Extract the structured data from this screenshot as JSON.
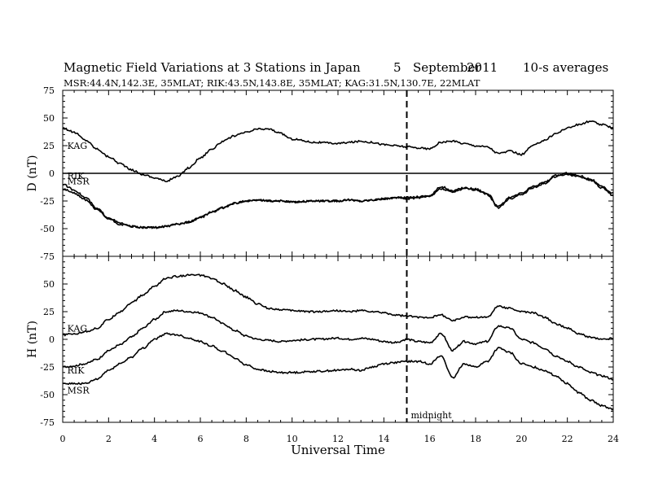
{
  "chart_data": {
    "type": "line",
    "title": {
      "main": "Magnetic Field Variations at 3 Stations in Japan",
      "day": "5",
      "month": "September",
      "year": "2011",
      "averaging": "10-s averages",
      "subtitle": "MSR:44.4N,142.3E, 35MLAT;  RIK:43.5N,143.8E, 35MLAT;  KAG:31.5N,130.7E, 22MLAT"
    },
    "xlabel": "Universal Time",
    "xlim": [
      0,
      24
    ],
    "xticks": [
      0,
      2,
      4,
      6,
      8,
      10,
      12,
      14,
      16,
      18,
      20,
      22,
      24
    ],
    "annotation": {
      "x": 15,
      "text": "midnight",
      "style": "dashed"
    },
    "panels": [
      {
        "id": "D",
        "ylabel": "D (nT)",
        "ylim": [
          -75,
          75
        ],
        "yticks": [
          -75,
          -50,
          -25,
          0,
          25,
          50,
          75
        ],
        "zero_line": true,
        "labels": [
          {
            "text": "KAG",
            "x": 0.2,
            "y": 22
          },
          {
            "text": "RIK",
            "x": 0.2,
            "y": -5
          },
          {
            "text": "MSR",
            "x": 0.2,
            "y": -10
          }
        ],
        "series": [
          {
            "name": "KAG",
            "x": [
              0,
              0.5,
              1,
              1.5,
              2,
              2.5,
              3,
              3.5,
              4,
              4.5,
              5,
              5.5,
              6,
              6.5,
              7,
              7.5,
              8,
              8.5,
              9,
              9.5,
              10,
              11,
              12,
              12.5,
              13,
              13.5,
              14,
              14.5,
              15,
              15.5,
              16,
              16.5,
              17,
              17.5,
              18,
              18.5,
              19,
              19.5,
              20,
              20.5,
              21,
              21.5,
              22,
              22.5,
              23,
              23.5,
              24
            ],
            "values": [
              41,
              37,
              30,
              22,
              15,
              9,
              3,
              -1,
              -4,
              -7,
              -3,
              5,
              14,
              22,
              29,
              34,
              37,
              40,
              40,
              36,
              31,
              28,
              27,
              28,
              29,
              28,
              26,
              25,
              24,
              23,
              22,
              28,
              29,
              27,
              25,
              24,
              18,
              20,
              17,
              25,
              30,
              36,
              41,
              44,
              47,
              44,
              41
            ]
          },
          {
            "name": "RIK",
            "x": [
              0,
              0.5,
              1,
              1.5,
              2,
              2.5,
              3,
              3.5,
              4,
              4.5,
              5,
              5.5,
              6,
              6.5,
              7,
              7.5,
              8,
              8.5,
              9,
              9.5,
              10,
              11,
              12,
              12.5,
              13,
              13.5,
              14,
              14.5,
              15,
              15.5,
              16,
              16.5,
              17,
              17.5,
              18,
              18.5,
              19,
              19.5,
              20,
              20.5,
              21,
              21.5,
              22,
              22.5,
              23,
              23.5,
              24
            ],
            "values": [
              -10,
              -15,
              -22,
              -32,
              -40,
              -45,
              -48,
              -49,
              -49,
              -48,
              -46,
              -44,
              -40,
              -35,
              -31,
              -27,
              -25,
              -24,
              -25,
              -25,
              -26,
              -25,
              -25,
              -24,
              -25,
              -24,
              -23,
              -22,
              -22,
              -21,
              -20,
              -12,
              -16,
              -13,
              -14,
              -18,
              -30,
              -22,
              -18,
              -12,
              -8,
              -2,
              0,
              -2,
              -5,
              -12,
              -18
            ]
          },
          {
            "name": "MSR",
            "x": [
              0,
              0.5,
              1,
              1.5,
              2,
              2.5,
              3,
              3.5,
              4,
              4.5,
              5,
              5.5,
              6,
              6.5,
              7,
              7.5,
              8,
              8.5,
              9,
              9.5,
              10,
              11,
              12,
              12.5,
              13,
              13.5,
              14,
              14.5,
              15,
              15.5,
              16,
              16.5,
              17,
              17.5,
              18,
              18.5,
              19,
              19.5,
              20,
              20.5,
              21,
              21.5,
              22,
              22.5,
              23,
              23.5,
              24
            ],
            "values": [
              -14,
              -18,
              -24,
              -33,
              -41,
              -46,
              -48,
              -49,
              -49,
              -48,
              -46,
              -44,
              -40,
              -35,
              -31,
              -27,
              -25,
              -24,
              -25,
              -25,
              -26,
              -25,
              -25,
              -24,
              -25,
              -24,
              -23,
              -22,
              -23,
              -22,
              -21,
              -14,
              -17,
              -14,
              -15,
              -19,
              -31,
              -23,
              -19,
              -13,
              -9,
              -3,
              -1,
              -3,
              -6,
              -13,
              -20
            ]
          }
        ]
      },
      {
        "id": "H",
        "ylabel": "H (nT)",
        "ylim": [
          -75,
          75
        ],
        "yticks": [
          -75,
          -50,
          -25,
          0,
          25,
          50,
          75
        ],
        "zero_line": false,
        "labels": [
          {
            "text": "KAG",
            "x": 0.2,
            "y": 7
          },
          {
            "text": "RIK",
            "x": 0.2,
            "y": -31
          },
          {
            "text": "MSR",
            "x": 0.2,
            "y": -49
          }
        ],
        "series": [
          {
            "name": "KAG",
            "x": [
              0,
              0.5,
              1,
              1.5,
              2,
              2.5,
              3,
              3.5,
              4,
              4.5,
              5,
              5.5,
              6,
              6.5,
              7,
              7.5,
              8,
              8.5,
              9,
              9.5,
              10,
              11,
              12,
              12.5,
              13,
              13.5,
              14,
              14.5,
              15,
              15.5,
              16,
              16.5,
              17,
              17.5,
              18,
              18.5,
              19,
              19.5,
              20,
              20.5,
              21,
              21.5,
              22,
              22.5,
              23,
              23.5,
              24
            ],
            "values": [
              4,
              5,
              7,
              10,
              18,
              25,
              33,
              40,
              48,
              55,
              57,
              58,
              58,
              55,
              50,
              44,
              38,
              32,
              28,
              27,
              26,
              25,
              26,
              25,
              26,
              25,
              24,
              22,
              21,
              20,
              20,
              22,
              17,
              20,
              20,
              20,
              30,
              28,
              25,
              24,
              20,
              14,
              10,
              5,
              2,
              0,
              1
            ]
          },
          {
            "name": "RIK",
            "x": [
              0,
              0.5,
              1,
              1.5,
              2,
              2.5,
              3,
              3.5,
              4,
              4.5,
              5,
              5.5,
              6,
              6.5,
              7,
              7.5,
              8,
              8.5,
              9,
              9.5,
              10,
              11,
              12,
              12.5,
              13,
              13.5,
              14,
              14.5,
              15,
              15.5,
              16,
              16.5,
              17,
              17.5,
              18,
              18.5,
              19,
              19.5,
              20,
              20.5,
              21,
              21.5,
              22,
              22.5,
              23,
              23.5,
              24
            ],
            "values": [
              -25,
              -24,
              -22,
              -18,
              -10,
              -5,
              2,
              10,
              18,
              25,
              26,
              25,
              24,
              20,
              14,
              8,
              3,
              0,
              -1,
              -2,
              -1,
              0,
              1,
              0,
              1,
              0,
              -2,
              -3,
              0,
              -2,
              -3,
              5,
              -10,
              -2,
              -4,
              -2,
              12,
              10,
              0,
              -3,
              -8,
              -15,
              -20,
              -25,
              -30,
              -33,
              -36
            ]
          },
          {
            "name": "MSR",
            "x": [
              0,
              0.5,
              1,
              1.5,
              2,
              2.5,
              3,
              3.5,
              4,
              4.5,
              5,
              5.5,
              6,
              6.5,
              7,
              7.5,
              8,
              8.5,
              9,
              9.5,
              10,
              11,
              12,
              12.5,
              13,
              13.5,
              14,
              14.5,
              15,
              15.5,
              16,
              16.5,
              17,
              17.5,
              18,
              18.5,
              19,
              19.5,
              20,
              20.5,
              21,
              21.5,
              22,
              22.5,
              23,
              23.5,
              24
            ],
            "values": [
              -40,
              -40,
              -40,
              -36,
              -28,
              -22,
              -16,
              -8,
              0,
              5,
              4,
              1,
              -2,
              -6,
              -11,
              -17,
              -23,
              -27,
              -29,
              -30,
              -30,
              -29,
              -28,
              -27,
              -28,
              -25,
              -22,
              -21,
              -20,
              -20,
              -22,
              -15,
              -35,
              -22,
              -25,
              -20,
              -8,
              -12,
              -22,
              -25,
              -28,
              -33,
              -40,
              -48,
              -55,
              -60,
              -63
            ]
          }
        ]
      }
    ]
  }
}
